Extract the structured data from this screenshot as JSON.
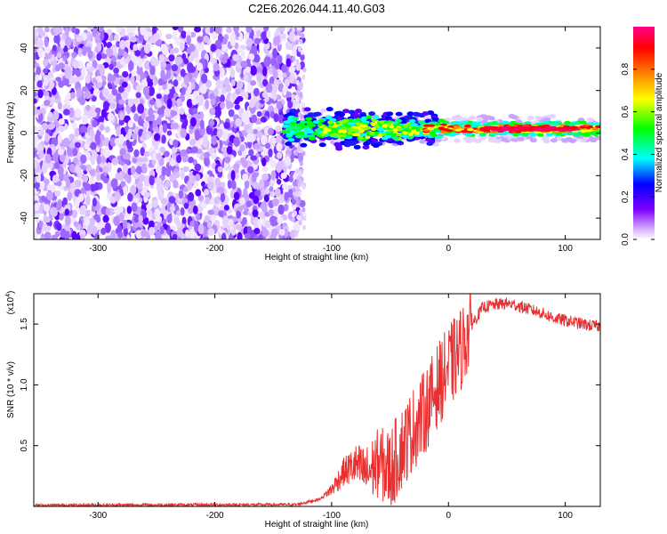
{
  "title": "C2E6.2026.044.11.40.G03",
  "chart_data": [
    {
      "type": "heatmap",
      "xlabel": "Height of straight line (km)",
      "ylabel": "Frequency (Hz)",
      "xlim": [
        -355,
        130
      ],
      "ylim": [
        -50,
        50
      ],
      "xticks": [
        -300,
        -200,
        -100,
        0,
        100
      ],
      "yticks": [
        -40,
        -20,
        0,
        20,
        40
      ],
      "colorbar": {
        "label": "Normalized spectral amplitude",
        "range": [
          0,
          1
        ],
        "ticks": [
          "0.0",
          "0.2",
          "0.4",
          "0.6",
          "0.8"
        ],
        "tick_values": [
          0.0,
          0.2,
          0.4,
          0.6,
          0.8
        ],
        "colors": [
          "#ffffff",
          "#cc99ff",
          "#8000ff",
          "#0000ff",
          "#00ffff",
          "#00ff00",
          "#ffff00",
          "#ff8000",
          "#ff0000",
          "#ff0088"
        ]
      },
      "regions": [
        {
          "name": "noise",
          "x_range": [
            -355,
            -125
          ],
          "y_range": [
            -50,
            50
          ],
          "amplitude": 0.05
        },
        {
          "name": "signal",
          "x_range": [
            -140,
            130
          ],
          "y_center": 2,
          "y_halfwidth": 3,
          "amplitude": 0.9
        }
      ]
    },
    {
      "type": "line",
      "xlabel": "Height of straight line (km)",
      "ylabel": "SNR (10 * v/v)",
      "y_multiplier": "(x10",
      "y_multiplier_exp": "4",
      "y_multiplier_close": ")",
      "xlim": [
        -355,
        130
      ],
      "ylim": [
        0,
        1.75
      ],
      "xticks": [
        -300,
        -200,
        -100,
        0,
        100
      ],
      "yticks": [
        "0.5",
        "1.0",
        "1.5"
      ],
      "ytick_values": [
        0.5,
        1.0,
        1.5
      ],
      "series": [
        {
          "name": "SNR",
          "color": "#e83030",
          "x": [
            -355,
            -130,
            -110,
            -100,
            -90,
            -80,
            -70,
            -60,
            -50,
            -40,
            -30,
            -20,
            -10,
            0,
            10,
            20,
            30,
            40,
            50,
            60,
            70,
            80,
            90,
            100,
            110,
            120,
            130
          ],
          "y": [
            0.01,
            0.015,
            0.06,
            0.14,
            0.28,
            0.34,
            0.27,
            0.36,
            0.3,
            0.48,
            0.64,
            0.78,
            0.98,
            1.14,
            1.28,
            1.5,
            1.64,
            1.66,
            1.67,
            1.65,
            1.62,
            1.59,
            1.55,
            1.53,
            1.51,
            1.49,
            1.48
          ]
        }
      ]
    }
  ]
}
